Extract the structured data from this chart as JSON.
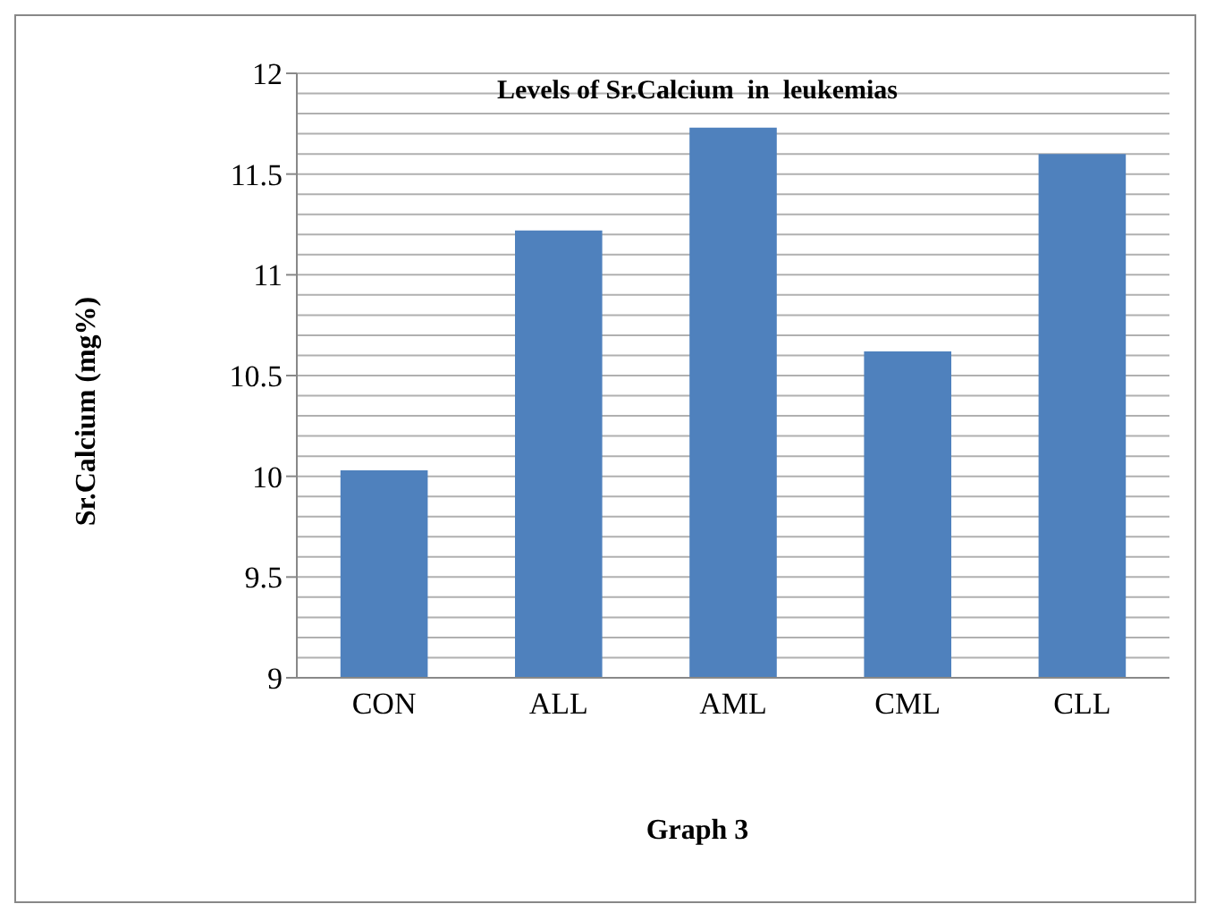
{
  "chart_data": {
    "type": "bar",
    "title": "Levels of Sr.Calcium  in  leukemias",
    "xlabel": "Graph 3",
    "ylabel": "Sr.Calcium (mg%)",
    "categories": [
      "CON",
      "ALL",
      "AML",
      "CML",
      "CLL"
    ],
    "values": [
      10.03,
      11.22,
      11.73,
      10.62,
      11.6
    ],
    "color": "#4f81bd",
    "ylim": [
      9,
      12
    ],
    "yticks": [
      9,
      {
        "value": 9.1,
        "label": null
      },
      {
        "value": 9.2,
        "label": null
      },
      {
        "value": 9.3,
        "label": null
      },
      {
        "value": 9.4,
        "label": null
      },
      9.5,
      {
        "value": 9.6,
        "label": null
      },
      {
        "value": 9.7,
        "label": null
      },
      {
        "value": 9.8,
        "label": null
      },
      {
        "value": 9.9,
        "label": null
      },
      10,
      {
        "value": 10.1,
        "label": null
      },
      {
        "value": 10.2,
        "label": null
      },
      {
        "value": 10.3,
        "label": null
      },
      {
        "value": 10.4,
        "label": null
      },
      10.5,
      {
        "value": 10.6,
        "label": null
      },
      {
        "value": 10.7,
        "label": null
      },
      {
        "value": 10.8,
        "label": null
      },
      {
        "value": 10.9,
        "label": null
      },
      11,
      {
        "value": 11.1,
        "label": null
      },
      {
        "value": 11.2,
        "label": null
      },
      {
        "value": 11.3,
        "label": null
      },
      {
        "value": 11.4,
        "label": null
      },
      11.5,
      {
        "value": 11.6,
        "label": null
      },
      {
        "value": 11.7,
        "label": null
      },
      {
        "value": 11.8,
        "label": null
      },
      {
        "value": 11.9,
        "label": null
      },
      12
    ],
    "grid": "y"
  }
}
